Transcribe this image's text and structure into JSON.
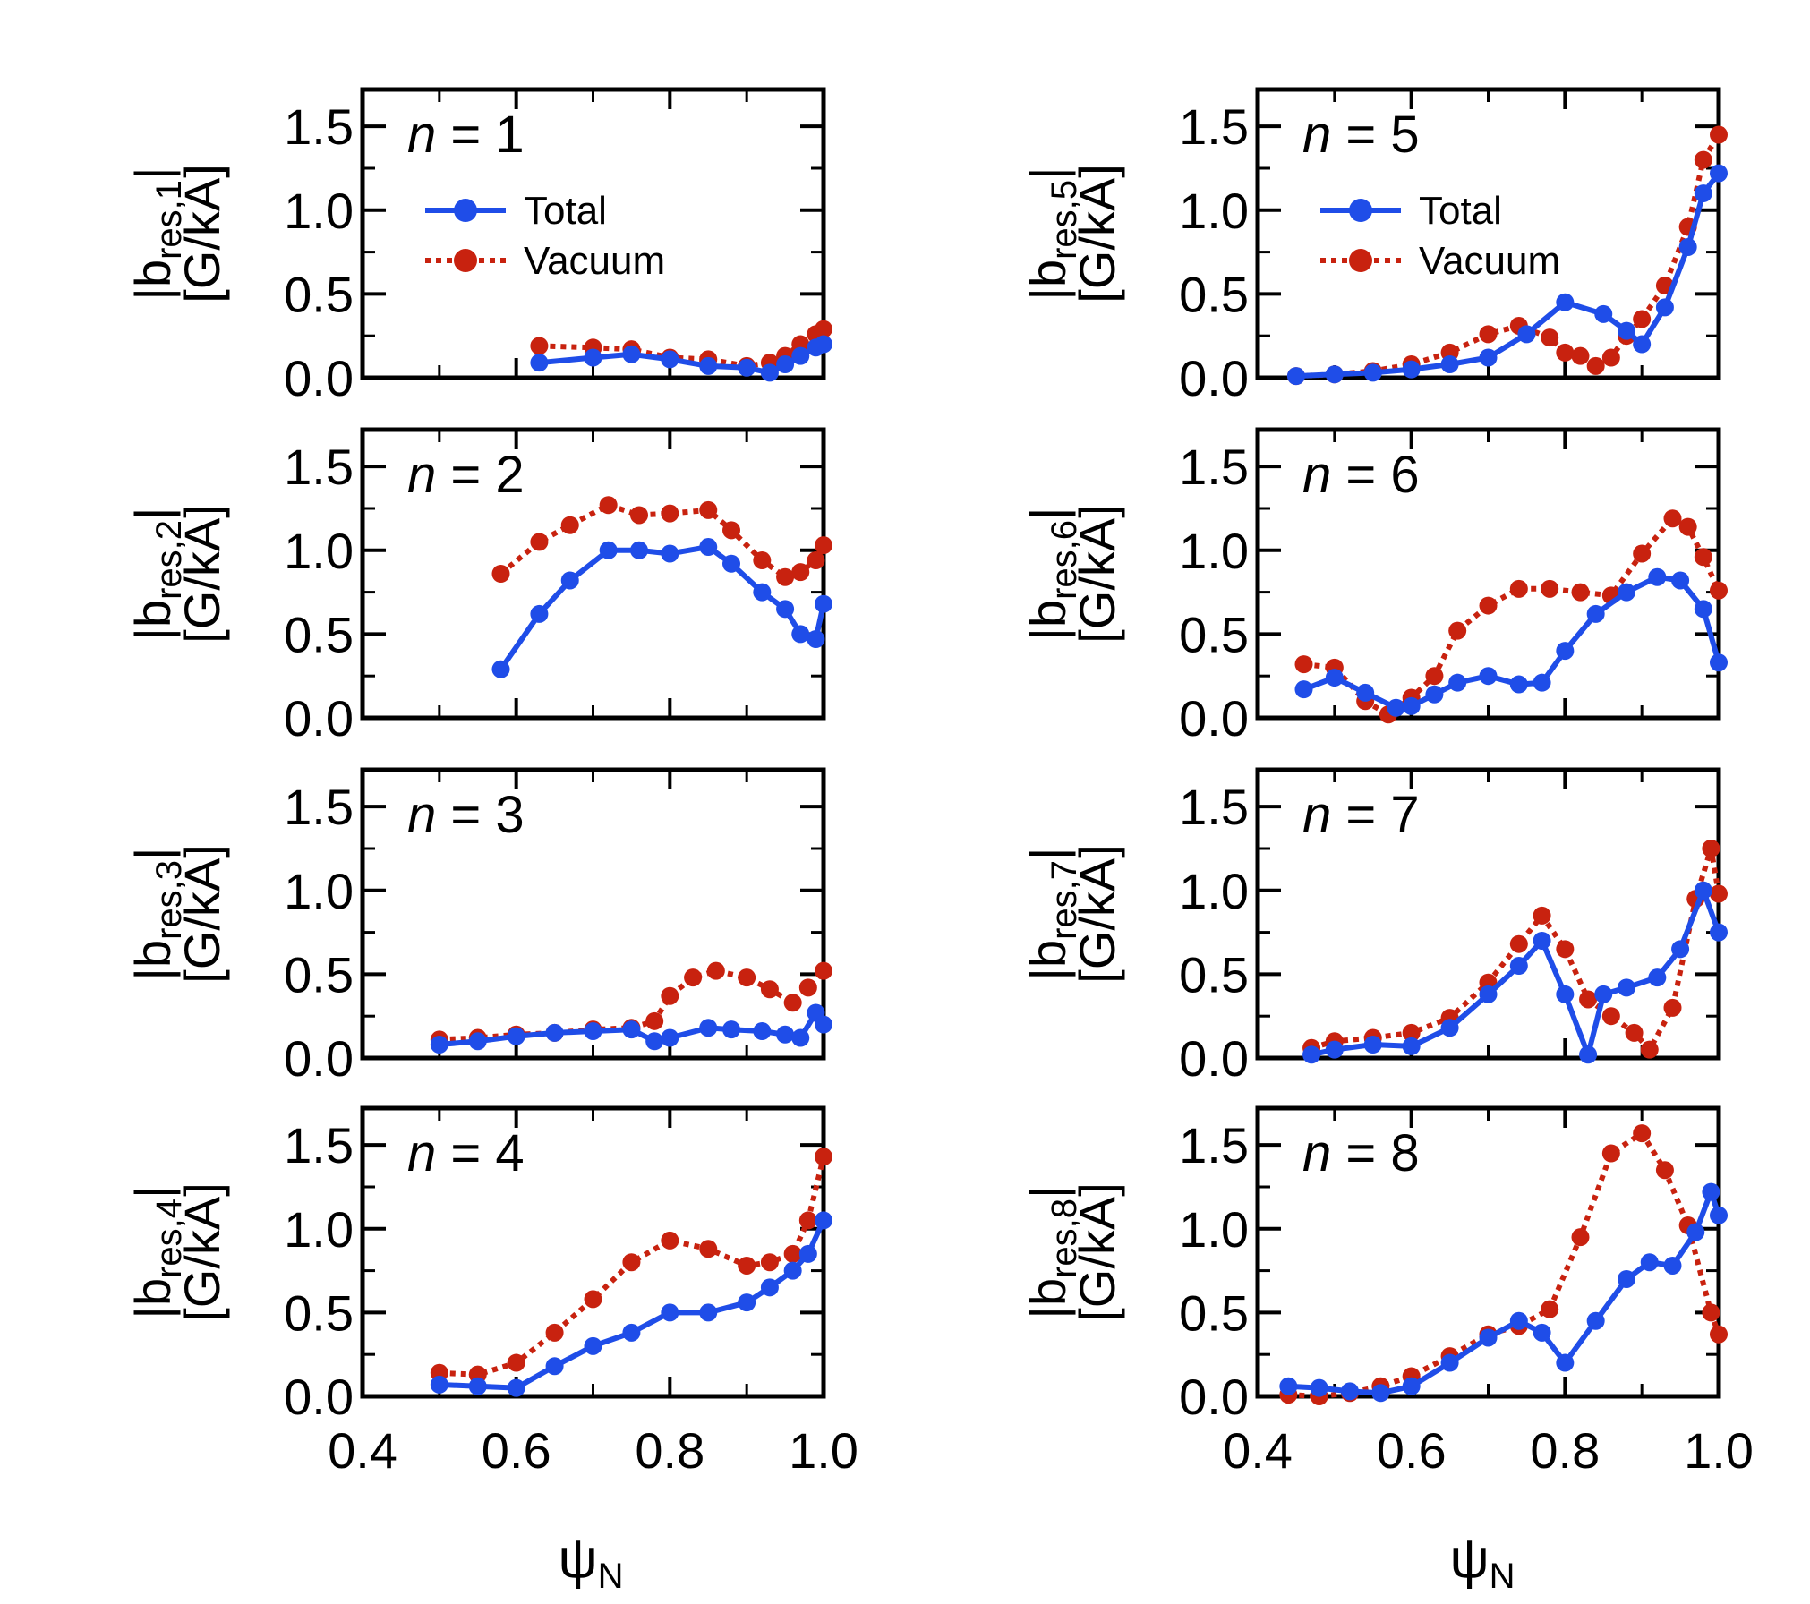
{
  "chart_data": {
    "type": "line",
    "layout": "4x2 grid of panels sharing x-axis",
    "xlabel": "ψ",
    "xlabel_sub": "N",
    "xlim": [
      0.4,
      1.0
    ],
    "xticks": [
      0.4,
      0.6,
      0.8,
      1.0
    ],
    "xtick_labels": [
      "0.4",
      "0.6",
      "0.8",
      "1.0"
    ],
    "ylim": [
      0,
      1.72
    ],
    "yticks": [
      0.0,
      0.5,
      1.0,
      1.5
    ],
    "ytick_labels": [
      "0.0",
      "0.5",
      "1.0",
      "1.5"
    ],
    "ylabel_units": "[G/kA]",
    "legend": {
      "placement": "upper-left inside n = 1 and n = 5 panels",
      "entries": [
        {
          "name": "Total",
          "style": "solid",
          "color": "#1f4de8"
        },
        {
          "name": "Vacuum",
          "style": "dotted",
          "color": "#c8220f"
        }
      ]
    },
    "colors": {
      "total": "#1f4de8",
      "vacuum": "#c8220f"
    },
    "panels": [
      {
        "n_label": "n",
        "n_value": "= 1",
        "ylabel_main": "|b",
        "ylabel_sub": "res,1",
        "ylabel_close": "|",
        "legend": true,
        "series": [
          {
            "name": "Total",
            "x": [
              0.63,
              0.7,
              0.75,
              0.8,
              0.85,
              0.9,
              0.93,
              0.95,
              0.97,
              0.99,
              1.0
            ],
            "y": [
              0.09,
              0.12,
              0.14,
              0.11,
              0.07,
              0.06,
              0.03,
              0.08,
              0.13,
              0.18,
              0.2
            ]
          },
          {
            "name": "Vacuum",
            "x": [
              0.63,
              0.7,
              0.75,
              0.8,
              0.85,
              0.9,
              0.93,
              0.95,
              0.97,
              0.99,
              1.0
            ],
            "y": [
              0.19,
              0.18,
              0.17,
              0.12,
              0.11,
              0.07,
              0.09,
              0.13,
              0.2,
              0.26,
              0.29
            ]
          }
        ]
      },
      {
        "n_label": "n",
        "n_value": "= 5",
        "ylabel_main": "|b",
        "ylabel_sub": "res,5",
        "ylabel_close": "|",
        "legend": true,
        "series": [
          {
            "name": "Total",
            "x": [
              0.45,
              0.5,
              0.55,
              0.6,
              0.65,
              0.7,
              0.75,
              0.8,
              0.85,
              0.88,
              0.9,
              0.93,
              0.96,
              0.98,
              1.0
            ],
            "y": [
              0.01,
              0.02,
              0.03,
              0.05,
              0.08,
              0.12,
              0.26,
              0.45,
              0.38,
              0.28,
              0.2,
              0.42,
              0.78,
              1.1,
              1.22
            ]
          },
          {
            "name": "Vacuum",
            "x": [
              0.45,
              0.5,
              0.55,
              0.6,
              0.65,
              0.7,
              0.74,
              0.78,
              0.8,
              0.82,
              0.84,
              0.86,
              0.88,
              0.9,
              0.93,
              0.96,
              0.98,
              1.0
            ],
            "y": [
              0.01,
              0.02,
              0.04,
              0.08,
              0.15,
              0.26,
              0.31,
              0.24,
              0.15,
              0.13,
              0.07,
              0.12,
              0.25,
              0.35,
              0.55,
              0.9,
              1.3,
              1.45
            ]
          }
        ]
      },
      {
        "n_label": "n",
        "n_value": "= 2",
        "ylabel_main": "|b",
        "ylabel_sub": "res,2",
        "ylabel_close": "|",
        "legend": false,
        "series": [
          {
            "name": "Total",
            "x": [
              0.58,
              0.63,
              0.67,
              0.72,
              0.76,
              0.8,
              0.85,
              0.88,
              0.92,
              0.95,
              0.97,
              0.99,
              1.0
            ],
            "y": [
              0.29,
              0.62,
              0.82,
              1.0,
              1.0,
              0.98,
              1.02,
              0.92,
              0.75,
              0.65,
              0.5,
              0.47,
              0.68
            ]
          },
          {
            "name": "Vacuum",
            "x": [
              0.58,
              0.63,
              0.67,
              0.72,
              0.76,
              0.8,
              0.85,
              0.88,
              0.92,
              0.95,
              0.97,
              0.99,
              1.0
            ],
            "y": [
              0.86,
              1.05,
              1.15,
              1.27,
              1.21,
              1.22,
              1.24,
              1.12,
              0.94,
              0.84,
              0.87,
              0.94,
              1.03
            ]
          }
        ]
      },
      {
        "n_label": "n",
        "n_value": "= 6",
        "ylabel_main": "|b",
        "ylabel_sub": "res,6",
        "ylabel_close": "|",
        "legend": false,
        "series": [
          {
            "name": "Total",
            "x": [
              0.46,
              0.5,
              0.54,
              0.58,
              0.6,
              0.63,
              0.66,
              0.7,
              0.74,
              0.77,
              0.8,
              0.84,
              0.88,
              0.92,
              0.95,
              0.98,
              1.0
            ],
            "y": [
              0.17,
              0.24,
              0.15,
              0.06,
              0.07,
              0.14,
              0.21,
              0.25,
              0.2,
              0.21,
              0.4,
              0.62,
              0.75,
              0.84,
              0.82,
              0.65,
              0.33
            ]
          },
          {
            "name": "Vacuum",
            "x": [
              0.46,
              0.5,
              0.54,
              0.57,
              0.6,
              0.63,
              0.66,
              0.7,
              0.74,
              0.78,
              0.82,
              0.86,
              0.9,
              0.94,
              0.96,
              0.98,
              1.0
            ],
            "y": [
              0.32,
              0.3,
              0.1,
              0.02,
              0.12,
              0.25,
              0.52,
              0.67,
              0.77,
              0.77,
              0.75,
              0.73,
              0.98,
              1.19,
              1.14,
              0.96,
              0.76
            ]
          }
        ]
      },
      {
        "n_label": "n",
        "n_value": "= 3",
        "ylabel_main": "|b",
        "ylabel_sub": "res,3",
        "ylabel_close": "|",
        "legend": false,
        "series": [
          {
            "name": "Total",
            "x": [
              0.5,
              0.55,
              0.6,
              0.65,
              0.7,
              0.75,
              0.78,
              0.8,
              0.85,
              0.88,
              0.92,
              0.95,
              0.97,
              0.99,
              1.0
            ],
            "y": [
              0.08,
              0.1,
              0.13,
              0.15,
              0.16,
              0.17,
              0.1,
              0.12,
              0.18,
              0.17,
              0.16,
              0.14,
              0.12,
              0.27,
              0.2
            ]
          },
          {
            "name": "Vacuum",
            "x": [
              0.5,
              0.55,
              0.6,
              0.65,
              0.7,
              0.75,
              0.78,
              0.8,
              0.83,
              0.86,
              0.9,
              0.93,
              0.96,
              0.98,
              1.0
            ],
            "y": [
              0.11,
              0.12,
              0.14,
              0.15,
              0.17,
              0.18,
              0.22,
              0.37,
              0.48,
              0.52,
              0.48,
              0.41,
              0.33,
              0.42,
              0.52
            ]
          }
        ]
      },
      {
        "n_label": "n",
        "n_value": "= 7",
        "ylabel_main": "|b",
        "ylabel_sub": "res,7",
        "ylabel_close": "|",
        "legend": false,
        "series": [
          {
            "name": "Total",
            "x": [
              0.47,
              0.5,
              0.55,
              0.6,
              0.65,
              0.7,
              0.74,
              0.77,
              0.8,
              0.83,
              0.85,
              0.88,
              0.92,
              0.95,
              0.98,
              1.0
            ],
            "y": [
              0.02,
              0.05,
              0.08,
              0.07,
              0.18,
              0.38,
              0.55,
              0.7,
              0.38,
              0.02,
              0.38,
              0.42,
              0.48,
              0.65,
              1.0,
              0.75
            ]
          },
          {
            "name": "Vacuum",
            "x": [
              0.47,
              0.5,
              0.55,
              0.6,
              0.65,
              0.7,
              0.74,
              0.77,
              0.8,
              0.83,
              0.86,
              0.89,
              0.91,
              0.94,
              0.97,
              0.99,
              1.0
            ],
            "y": [
              0.06,
              0.1,
              0.12,
              0.15,
              0.24,
              0.45,
              0.68,
              0.85,
              0.65,
              0.35,
              0.25,
              0.15,
              0.05,
              0.3,
              0.95,
              1.25,
              0.98
            ]
          }
        ]
      },
      {
        "n_label": "n",
        "n_value": "= 4",
        "ylabel_main": "|b",
        "ylabel_sub": "res,4",
        "ylabel_close": "|",
        "legend": false,
        "series": [
          {
            "name": "Total",
            "x": [
              0.5,
              0.55,
              0.6,
              0.65,
              0.7,
              0.75,
              0.8,
              0.85,
              0.9,
              0.93,
              0.96,
              0.98,
              1.0
            ],
            "y": [
              0.07,
              0.06,
              0.05,
              0.18,
              0.3,
              0.38,
              0.5,
              0.5,
              0.56,
              0.65,
              0.75,
              0.85,
              1.05
            ]
          },
          {
            "name": "Vacuum",
            "x": [
              0.5,
              0.55,
              0.6,
              0.65,
              0.7,
              0.75,
              0.8,
              0.85,
              0.9,
              0.93,
              0.96,
              0.98,
              1.0
            ],
            "y": [
              0.14,
              0.13,
              0.2,
              0.38,
              0.58,
              0.8,
              0.93,
              0.88,
              0.78,
              0.8,
              0.85,
              1.05,
              1.43
            ]
          }
        ]
      },
      {
        "n_label": "n",
        "n_value": "= 8",
        "ylabel_main": "|b",
        "ylabel_sub": "res,8",
        "ylabel_close": "|",
        "legend": false,
        "series": [
          {
            "name": "Total",
            "x": [
              0.44,
              0.48,
              0.52,
              0.56,
              0.6,
              0.65,
              0.7,
              0.74,
              0.77,
              0.8,
              0.84,
              0.88,
              0.91,
              0.94,
              0.97,
              0.99,
              1.0
            ],
            "y": [
              0.06,
              0.05,
              0.03,
              0.02,
              0.06,
              0.2,
              0.35,
              0.45,
              0.38,
              0.2,
              0.45,
              0.7,
              0.8,
              0.78,
              0.98,
              1.22,
              1.08
            ]
          },
          {
            "name": "Vacuum",
            "x": [
              0.44,
              0.48,
              0.52,
              0.56,
              0.6,
              0.65,
              0.7,
              0.74,
              0.78,
              0.82,
              0.86,
              0.9,
              0.93,
              0.96,
              0.99,
              1.0
            ],
            "y": [
              0.01,
              0.0,
              0.02,
              0.06,
              0.12,
              0.24,
              0.37,
              0.42,
              0.52,
              0.95,
              1.45,
              1.57,
              1.35,
              1.02,
              0.5,
              0.37
            ]
          }
        ]
      }
    ]
  }
}
